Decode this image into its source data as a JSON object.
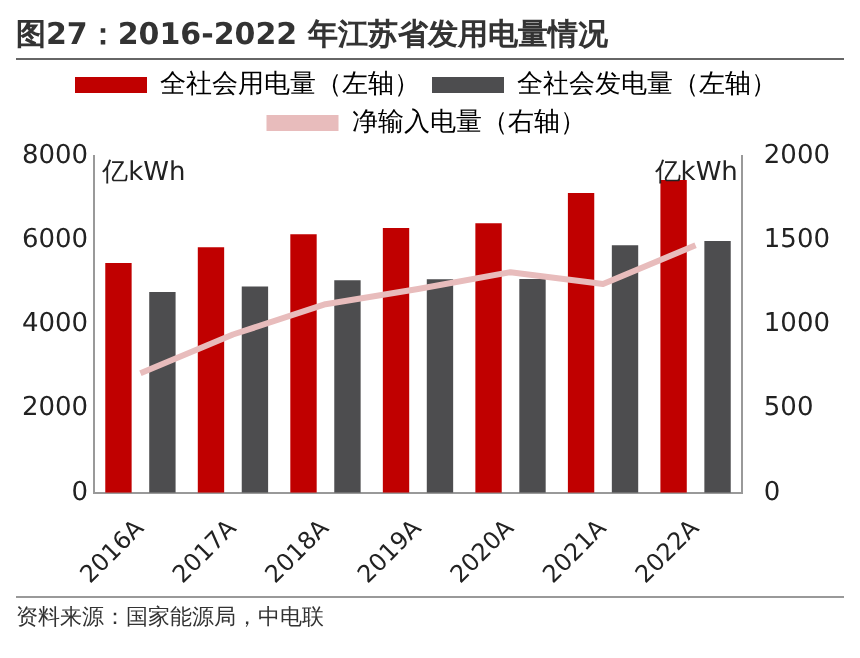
{
  "chart_data": {
    "type": "bar",
    "title": "图27：2016-2022 年江苏省发用电量情况",
    "categories": [
      "2016A",
      "2017A",
      "2018A",
      "2019A",
      "2020A",
      "2021A",
      "2022A"
    ],
    "series": [
      {
        "name": "全社会用电量（左轴）",
        "color": "#c00000",
        "values": [
          5460,
          5830,
          6140,
          6290,
          6400,
          7120,
          7430
        ]
      },
      {
        "name": "全社会发电量（左轴）",
        "color": "#4d4d4f",
        "values": [
          4770,
          4900,
          5050,
          5070,
          5080,
          5880,
          5980
        ]
      },
      {
        "name": "净输入电量（右轴）",
        "type": "line",
        "axis": "y2",
        "color": "#e8bcbc",
        "values": [
          710,
          940,
          1120,
          1210,
          1310,
          1240,
          1470
        ]
      }
    ],
    "ylabel": "亿kWh",
    "y2label": "亿kWh",
    "ylim": [
      0,
      8000
    ],
    "yticks": [
      0,
      2000,
      4000,
      6000,
      8000
    ],
    "y2lim": [
      0,
      2000
    ],
    "y2ticks": [
      0,
      500,
      1000,
      1500,
      2000
    ],
    "grid": false,
    "legend": "top",
    "marker": "none",
    "annotations": [
      "资料来源：国家能源局，中电联"
    ]
  }
}
